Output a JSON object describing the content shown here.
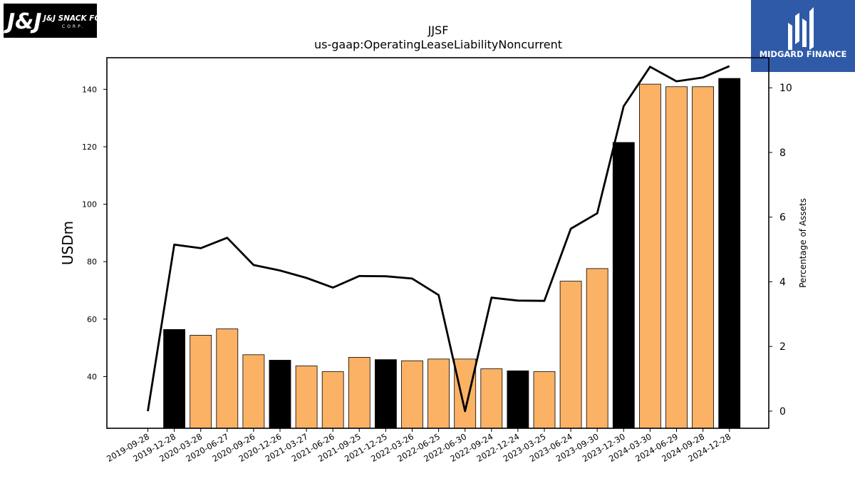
{
  "chart_data": {
    "type": "bar+line",
    "title": "JJSF",
    "subtitle": "us-gaap:OperatingLeaseLiabilityNoncurrent",
    "ylabel_left": "USDm",
    "ylabel_right": "Percentage of Assets",
    "categories": [
      "2019-09-28",
      "2019-12-28",
      "2020-03-28",
      "2020-06-27",
      "2020-09-26",
      "2020-12-26",
      "2021-03-27",
      "2021-06-26",
      "2021-09-25",
      "2021-12-25",
      "2022-03-26",
      "2022-06-25",
      "2022-06-30",
      "2022-09-24",
      "2022-12-24",
      "2023-03-25",
      "2023-06-24",
      "2023-09-30",
      "2023-12-30",
      "2024-03-30",
      "2024-06-29",
      "2024-09-28",
      "2024-12-28"
    ],
    "series": [
      {
        "axis": "left",
        "kind": "bar",
        "values": [
          null,
          56.4,
          54.4,
          56.6,
          47.6,
          45.7,
          43.7,
          41.7,
          46.7,
          45.9,
          45.5,
          46.1,
          46.1,
          42.7,
          42.0,
          41.7,
          73.2,
          77.6,
          121.5,
          141.8,
          140.9,
          140.9,
          143.8
        ],
        "colors": [
          null,
          "#000000",
          "#fbb265",
          "#fbb265",
          "#fbb265",
          "#000000",
          "#fbb265",
          "#fbb265",
          "#fbb265",
          "#000000",
          "#fbb265",
          "#fbb265",
          "#fbb265",
          "#fbb265",
          "#000000",
          "#fbb265",
          "#fbb265",
          "#fbb265",
          "#000000",
          "#fbb265",
          "#fbb265",
          "#fbb265",
          "#000000"
        ]
      },
      {
        "axis": "right",
        "kind": "line",
        "color": "#000000",
        "values": [
          0.0,
          5.15,
          5.04,
          5.36,
          4.52,
          4.35,
          4.12,
          3.82,
          4.18,
          4.17,
          4.1,
          3.59,
          0.0,
          3.51,
          3.42,
          3.41,
          5.64,
          6.12,
          9.43,
          10.65,
          10.2,
          10.32,
          10.67
        ]
      }
    ],
    "ylim_left": [
      22,
      151
    ],
    "ylim_right": [
      -0.53,
      10.93
    ],
    "yticks_left": [
      40,
      60,
      80,
      100,
      120,
      140
    ],
    "yticks_right": [
      0,
      2,
      4,
      6,
      8,
      10
    ],
    "grid": false,
    "legend": "none"
  },
  "logos": {
    "left": {
      "text": "J&J SNACK FOODS",
      "sub": "CORP.",
      "bg": "#000000"
    },
    "right": {
      "text": "MIDGARD FINANCE",
      "bg": "#2f5aa8"
    }
  },
  "colors": {
    "bar_accent": "#fbb265",
    "bar_dark": "#000000",
    "line": "#000000"
  }
}
